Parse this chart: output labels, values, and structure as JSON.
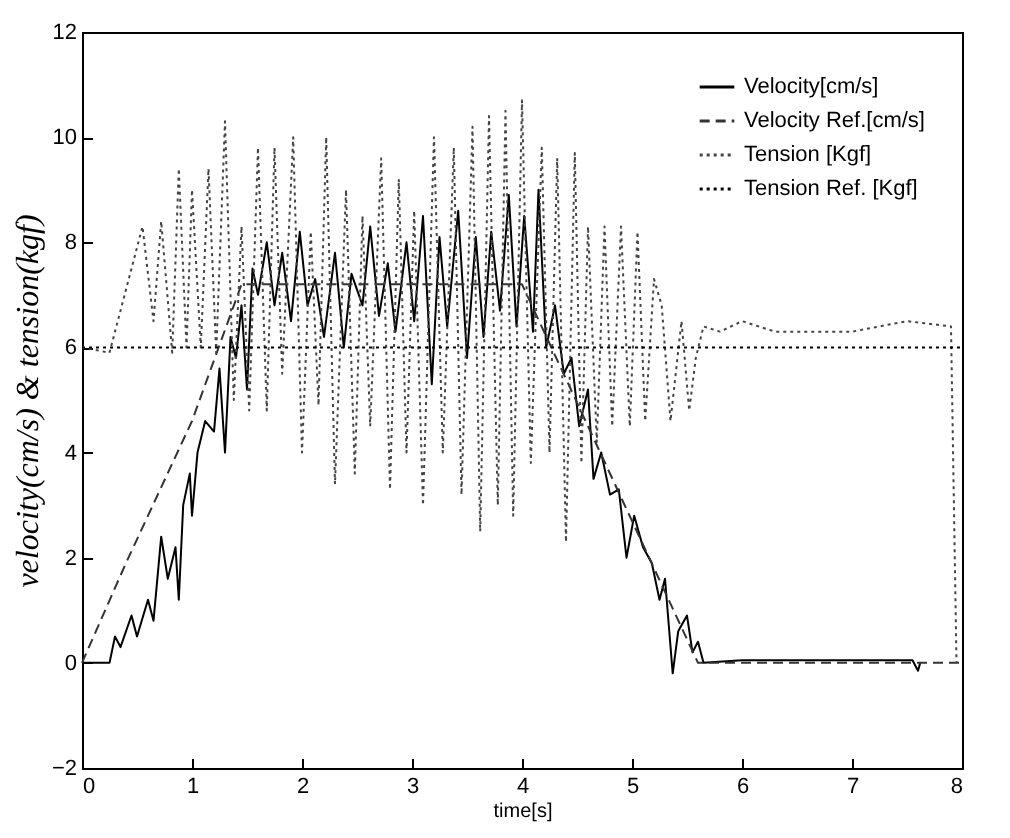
{
  "chart_data": {
    "type": "line",
    "xlabel": "time[s]",
    "ylabel": "velocity(cm/s) & tension(kgf)",
    "xlim": [
      0,
      8
    ],
    "ylim": [
      -2,
      12
    ],
    "xticks": [
      0,
      1,
      2,
      3,
      4,
      5,
      6,
      7,
      8
    ],
    "yticks": [
      -2,
      0,
      2,
      4,
      6,
      8,
      10,
      12
    ],
    "grid": false,
    "legend": "top right",
    "marker": "none",
    "series": [
      {
        "name": "Velocity[cm/s]",
        "color": "#000000",
        "line_style": "solid",
        "x": [
          0,
          0.25,
          0.3,
          0.35,
          0.45,
          0.5,
          0.6,
          0.65,
          0.72,
          0.78,
          0.85,
          0.88,
          0.92,
          0.98,
          1.0,
          1.05,
          1.12,
          1.2,
          1.25,
          1.3,
          1.35,
          1.4,
          1.45,
          1.5,
          1.55,
          1.6,
          1.68,
          1.75,
          1.82,
          1.9,
          1.98,
          2.05,
          2.12,
          2.2,
          2.3,
          2.38,
          2.45,
          2.55,
          2.62,
          2.7,
          2.78,
          2.85,
          2.95,
          3.02,
          3.1,
          3.18,
          3.25,
          3.32,
          3.42,
          3.5,
          3.58,
          3.65,
          3.72,
          3.8,
          3.88,
          3.95,
          4.02,
          4.1,
          4.15,
          4.22,
          4.3,
          4.38,
          4.45,
          4.52,
          4.6,
          4.65,
          4.72,
          4.8,
          4.88,
          4.95,
          5.02,
          5.1,
          5.18,
          5.25,
          5.3,
          5.37,
          5.42,
          5.5,
          5.55,
          5.6,
          5.65,
          6.0,
          7.0,
          7.55,
          7.6,
          7.62
        ],
        "values": [
          0,
          0,
          0.5,
          0.3,
          0.9,
          0.5,
          1.2,
          0.8,
          2.4,
          1.6,
          2.2,
          1.2,
          3.0,
          3.6,
          2.8,
          4.0,
          4.6,
          4.4,
          5.6,
          4.0,
          6.2,
          5.8,
          6.8,
          5.2,
          7.5,
          7.0,
          8.0,
          6.8,
          7.8,
          6.5,
          8.2,
          6.8,
          7.3,
          6.2,
          7.8,
          6.0,
          7.4,
          6.8,
          8.3,
          6.6,
          7.6,
          6.3,
          8.0,
          6.5,
          8.5,
          5.3,
          8.1,
          6.4,
          8.6,
          5.8,
          8.1,
          6.2,
          8.2,
          6.7,
          8.9,
          6.4,
          8.5,
          6.3,
          9.0,
          6.0,
          6.8,
          5.5,
          5.8,
          4.5,
          5.2,
          3.5,
          4.0,
          3.2,
          3.3,
          2.0,
          2.8,
          2.2,
          1.9,
          1.2,
          1.6,
          -0.2,
          0.6,
          0.9,
          0.2,
          0.4,
          0,
          0.05,
          0.05,
          0.05,
          -0.15,
          0
        ]
      },
      {
        "name": "Velocity Ref.[cm/s]",
        "color": "#333333",
        "line_style": "dashed",
        "x": [
          0,
          0.4,
          1.0,
          1.45,
          4.0,
          5.6,
          8.0
        ],
        "values": [
          0,
          1.9,
          4.6,
          7.2,
          7.2,
          0,
          0
        ]
      },
      {
        "name": "Tension [Kgf]",
        "color": "#444444",
        "line_style": "dotted",
        "x": [
          0,
          0.25,
          0.55,
          0.65,
          0.72,
          0.82,
          0.88,
          0.95,
          1.0,
          1.08,
          1.15,
          1.22,
          1.3,
          1.38,
          1.45,
          1.52,
          1.6,
          1.68,
          1.75,
          1.82,
          1.92,
          2.0,
          2.08,
          2.15,
          2.22,
          2.3,
          2.4,
          2.48,
          2.55,
          2.62,
          2.72,
          2.8,
          2.88,
          2.95,
          3.02,
          3.1,
          3.2,
          3.28,
          3.38,
          3.45,
          3.55,
          3.62,
          3.7,
          3.78,
          3.85,
          3.92,
          4.0,
          4.08,
          4.18,
          4.25,
          4.32,
          4.4,
          4.48,
          4.54,
          4.6,
          4.68,
          4.75,
          4.82,
          4.9,
          4.98,
          5.05,
          5.12,
          5.2,
          5.27,
          5.35,
          5.45,
          5.52,
          5.58,
          5.65,
          5.8,
          6.0,
          6.3,
          7.0,
          7.5,
          7.9,
          7.95
        ],
        "values": [
          6.0,
          5.9,
          8.3,
          6.5,
          8.4,
          5.9,
          9.4,
          6.0,
          9.0,
          6.0,
          9.4,
          5.9,
          10.3,
          5.0,
          8.3,
          4.8,
          9.8,
          4.8,
          9.8,
          5.5,
          10.0,
          4.0,
          8.2,
          4.9,
          10.0,
          3.4,
          9.0,
          3.6,
          8.5,
          4.5,
          9.6,
          3.3,
          9.2,
          4.0,
          8.6,
          3.0,
          10.0,
          4.0,
          9.8,
          3.2,
          10.2,
          2.5,
          10.4,
          3.0,
          10.5,
          2.8,
          10.7,
          3.8,
          9.8,
          4.0,
          9.6,
          2.3,
          9.7,
          3.8,
          8.3,
          4.2,
          8.3,
          4.5,
          8.3,
          4.5,
          8.2,
          4.6,
          7.3,
          6.8,
          4.6,
          6.5,
          4.8,
          5.8,
          6.4,
          6.3,
          6.5,
          6.3,
          6.3,
          6.5,
          6.4,
          0
        ]
      },
      {
        "name": "Tension Ref. [Kgf]",
        "color": "#000000",
        "line_style": "dotted",
        "x": [
          0,
          8
        ],
        "values": [
          6,
          6
        ]
      }
    ]
  }
}
